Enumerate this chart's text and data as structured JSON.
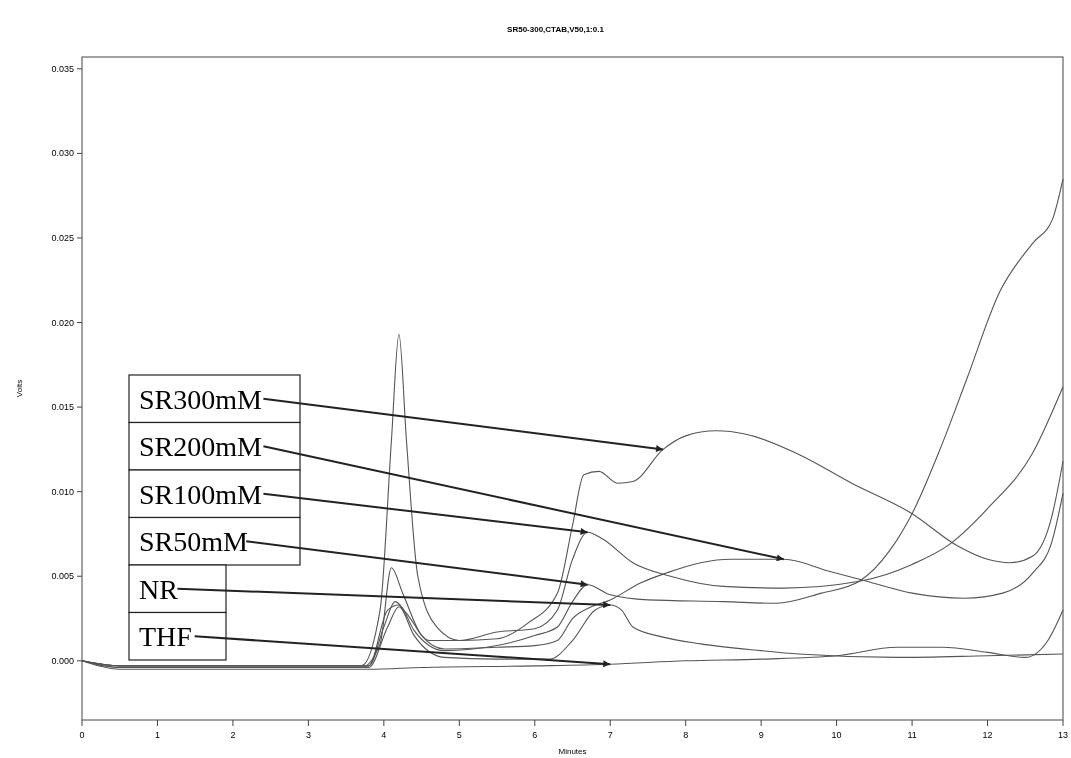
{
  "chart_data": {
    "type": "line",
    "title": "SR50-300,CTAB,V50,1:0.1",
    "xlabel": "Minutes",
    "ylabel": "Volts",
    "xlim": [
      0,
      13
    ],
    "ylim": [
      -0.0035,
      0.0357
    ],
    "xticks": [
      0,
      1,
      2,
      3,
      4,
      5,
      6,
      7,
      8,
      9,
      10,
      11,
      12,
      13
    ],
    "yticks": [
      {
        "value": 0,
        "label": "0.000"
      },
      {
        "value": 0.005,
        "label": "0.005"
      },
      {
        "value": 0.01,
        "label": "0.010"
      },
      {
        "value": 0.015,
        "label": "0.015"
      },
      {
        "value": 0.02,
        "label": "0.020"
      },
      {
        "value": 0.025,
        "label": "0.025"
      },
      {
        "value": 0.03,
        "label": "0.030"
      },
      {
        "value": 0.035,
        "label": "0.035"
      }
    ],
    "grid": false,
    "line_style": "solid",
    "series": [
      {
        "color": "#555555",
        "x": [
          0,
          0.5,
          3.7,
          3.95,
          4.1,
          4.2,
          4.3,
          4.45,
          4.7,
          5.0,
          5.5,
          5.9,
          6.3,
          6.5,
          6.65,
          6.85,
          7.1,
          7.3,
          7.7,
          8.0,
          8.4,
          8.8,
          9.5,
          10.2,
          11.0,
          11.6,
          12.0,
          12.3,
          12.6,
          12.85,
          13
        ],
        "values": [
          0,
          -0.0003,
          -0.0003,
          0.003,
          0.013,
          0.0193,
          0.013,
          0.005,
          0.002,
          0.0012,
          0.0013,
          0.0022,
          0.004,
          0.008,
          0.011,
          0.0112,
          0.0105,
          0.0106,
          0.0125,
          0.0133,
          0.0136,
          0.0134,
          0.0122,
          0.0105,
          0.0087,
          0.0068,
          0.006,
          0.0058,
          0.0062,
          0.0085,
          0.0118
        ]
      },
      {
        "color": "#555555",
        "x": [
          0,
          0.5,
          3.7,
          3.95,
          4.1,
          4.25,
          4.5,
          4.8,
          5.5,
          6.0,
          6.3,
          6.5,
          6.75,
          7.0,
          7.4,
          7.75,
          8.2,
          8.6,
          9.3,
          9.9,
          10.4,
          11.0,
          11.7,
          12.2,
          12.6,
          12.85,
          13
        ],
        "values": [
          0,
          -0.0004,
          -0.0004,
          0.001,
          0.0055,
          0.004,
          0.0015,
          0.0007,
          0.0008,
          0.0009,
          0.0012,
          0.0025,
          0.0032,
          0.0036,
          0.0046,
          0.0052,
          0.0058,
          0.006,
          0.006,
          0.0053,
          0.0047,
          0.004,
          0.0037,
          0.004,
          0.0052,
          0.007,
          0.0099
        ]
      },
      {
        "color": "#555555",
        "x": [
          0,
          0.5,
          3.8,
          4.0,
          4.15,
          4.3,
          4.6,
          5.0,
          5.5,
          6.0,
          6.3,
          6.5,
          6.7,
          6.9,
          7.3,
          7.8,
          8.5,
          9.3,
          10.3,
          11.0,
          11.5,
          12.0,
          12.6,
          13
        ],
        "values": [
          0,
          -0.0003,
          -0.0003,
          0.002,
          0.0035,
          0.0028,
          0.0012,
          0.0012,
          0.0017,
          0.0019,
          0.003,
          0.006,
          0.0076,
          0.0072,
          0.0058,
          0.005,
          0.0044,
          0.0043,
          0.0047,
          0.0057,
          0.0069,
          0.009,
          0.0123,
          0.0162
        ]
      },
      {
        "color": "#555555",
        "x": [
          0,
          0.5,
          3.8,
          4.05,
          4.2,
          4.4,
          4.8,
          5.5,
          6.0,
          6.3,
          6.5,
          6.7,
          7.0,
          7.5,
          8.5,
          9.2,
          9.8,
          10.3,
          10.7,
          11.0,
          11.37,
          11.72,
          12.16,
          12.6,
          12.86,
          13
        ],
        "values": [
          0,
          -0.0003,
          -0.0003,
          0.003,
          0.0033,
          0.0018,
          0.0006,
          0.0009,
          0.0015,
          0.002,
          0.0035,
          0.0045,
          0.0039,
          0.0036,
          0.0035,
          0.0034,
          0.004,
          0.0047,
          0.0065,
          0.0087,
          0.0125,
          0.0166,
          0.0218,
          0.0247,
          0.0261,
          0.0285
        ]
      },
      {
        "color": "#555555",
        "x": [
          0,
          0.5,
          3.8,
          4.05,
          4.2,
          4.4,
          4.8,
          5.5,
          6.2,
          6.5,
          6.8,
          7.0,
          7.15,
          7.3,
          7.7,
          8.2,
          9.0,
          9.5,
          10.8,
          12.0,
          13
        ],
        "values": [
          0,
          -0.0004,
          -0.0004,
          0.002,
          0.0032,
          0.0015,
          0.0002,
          0.0001,
          0.0001,
          0.0012,
          0.003,
          0.0033,
          0.003,
          0.002,
          0.0014,
          0.001,
          0.0006,
          0.0004,
          0.0002,
          0.0003,
          0.0004
        ]
      },
      {
        "color": "#555555",
        "x": [
          0,
          0.5,
          3.8,
          4.5,
          6.0,
          7.0,
          8.0,
          9.0,
          10.0,
          10.8,
          11.4,
          12.0,
          12.5,
          12.8,
          13
        ],
        "values": [
          0,
          -0.0005,
          -0.0005,
          -0.0004,
          -0.0003,
          -0.0002,
          0,
          0.0001,
          0.0003,
          0.0008,
          0.0008,
          0.0005,
          0.0002,
          0.0012,
          0.003
        ]
      }
    ],
    "annotations": [
      {
        "text": "SR300mM",
        "x": 7.7,
        "y": 0.0125
      },
      {
        "text": "SR200mM",
        "x": 9.3,
        "y": 0.006
      },
      {
        "text": "SR100mM",
        "x": 6.7,
        "y": 0.0076
      },
      {
        "text": "SR50mM",
        "x": 6.7,
        "y": 0.0045
      },
      {
        "text": "NR",
        "x": 7.0,
        "y": 0.0033
      },
      {
        "text": "THF",
        "x": 7.0,
        "y": -0.0002
      }
    ]
  }
}
